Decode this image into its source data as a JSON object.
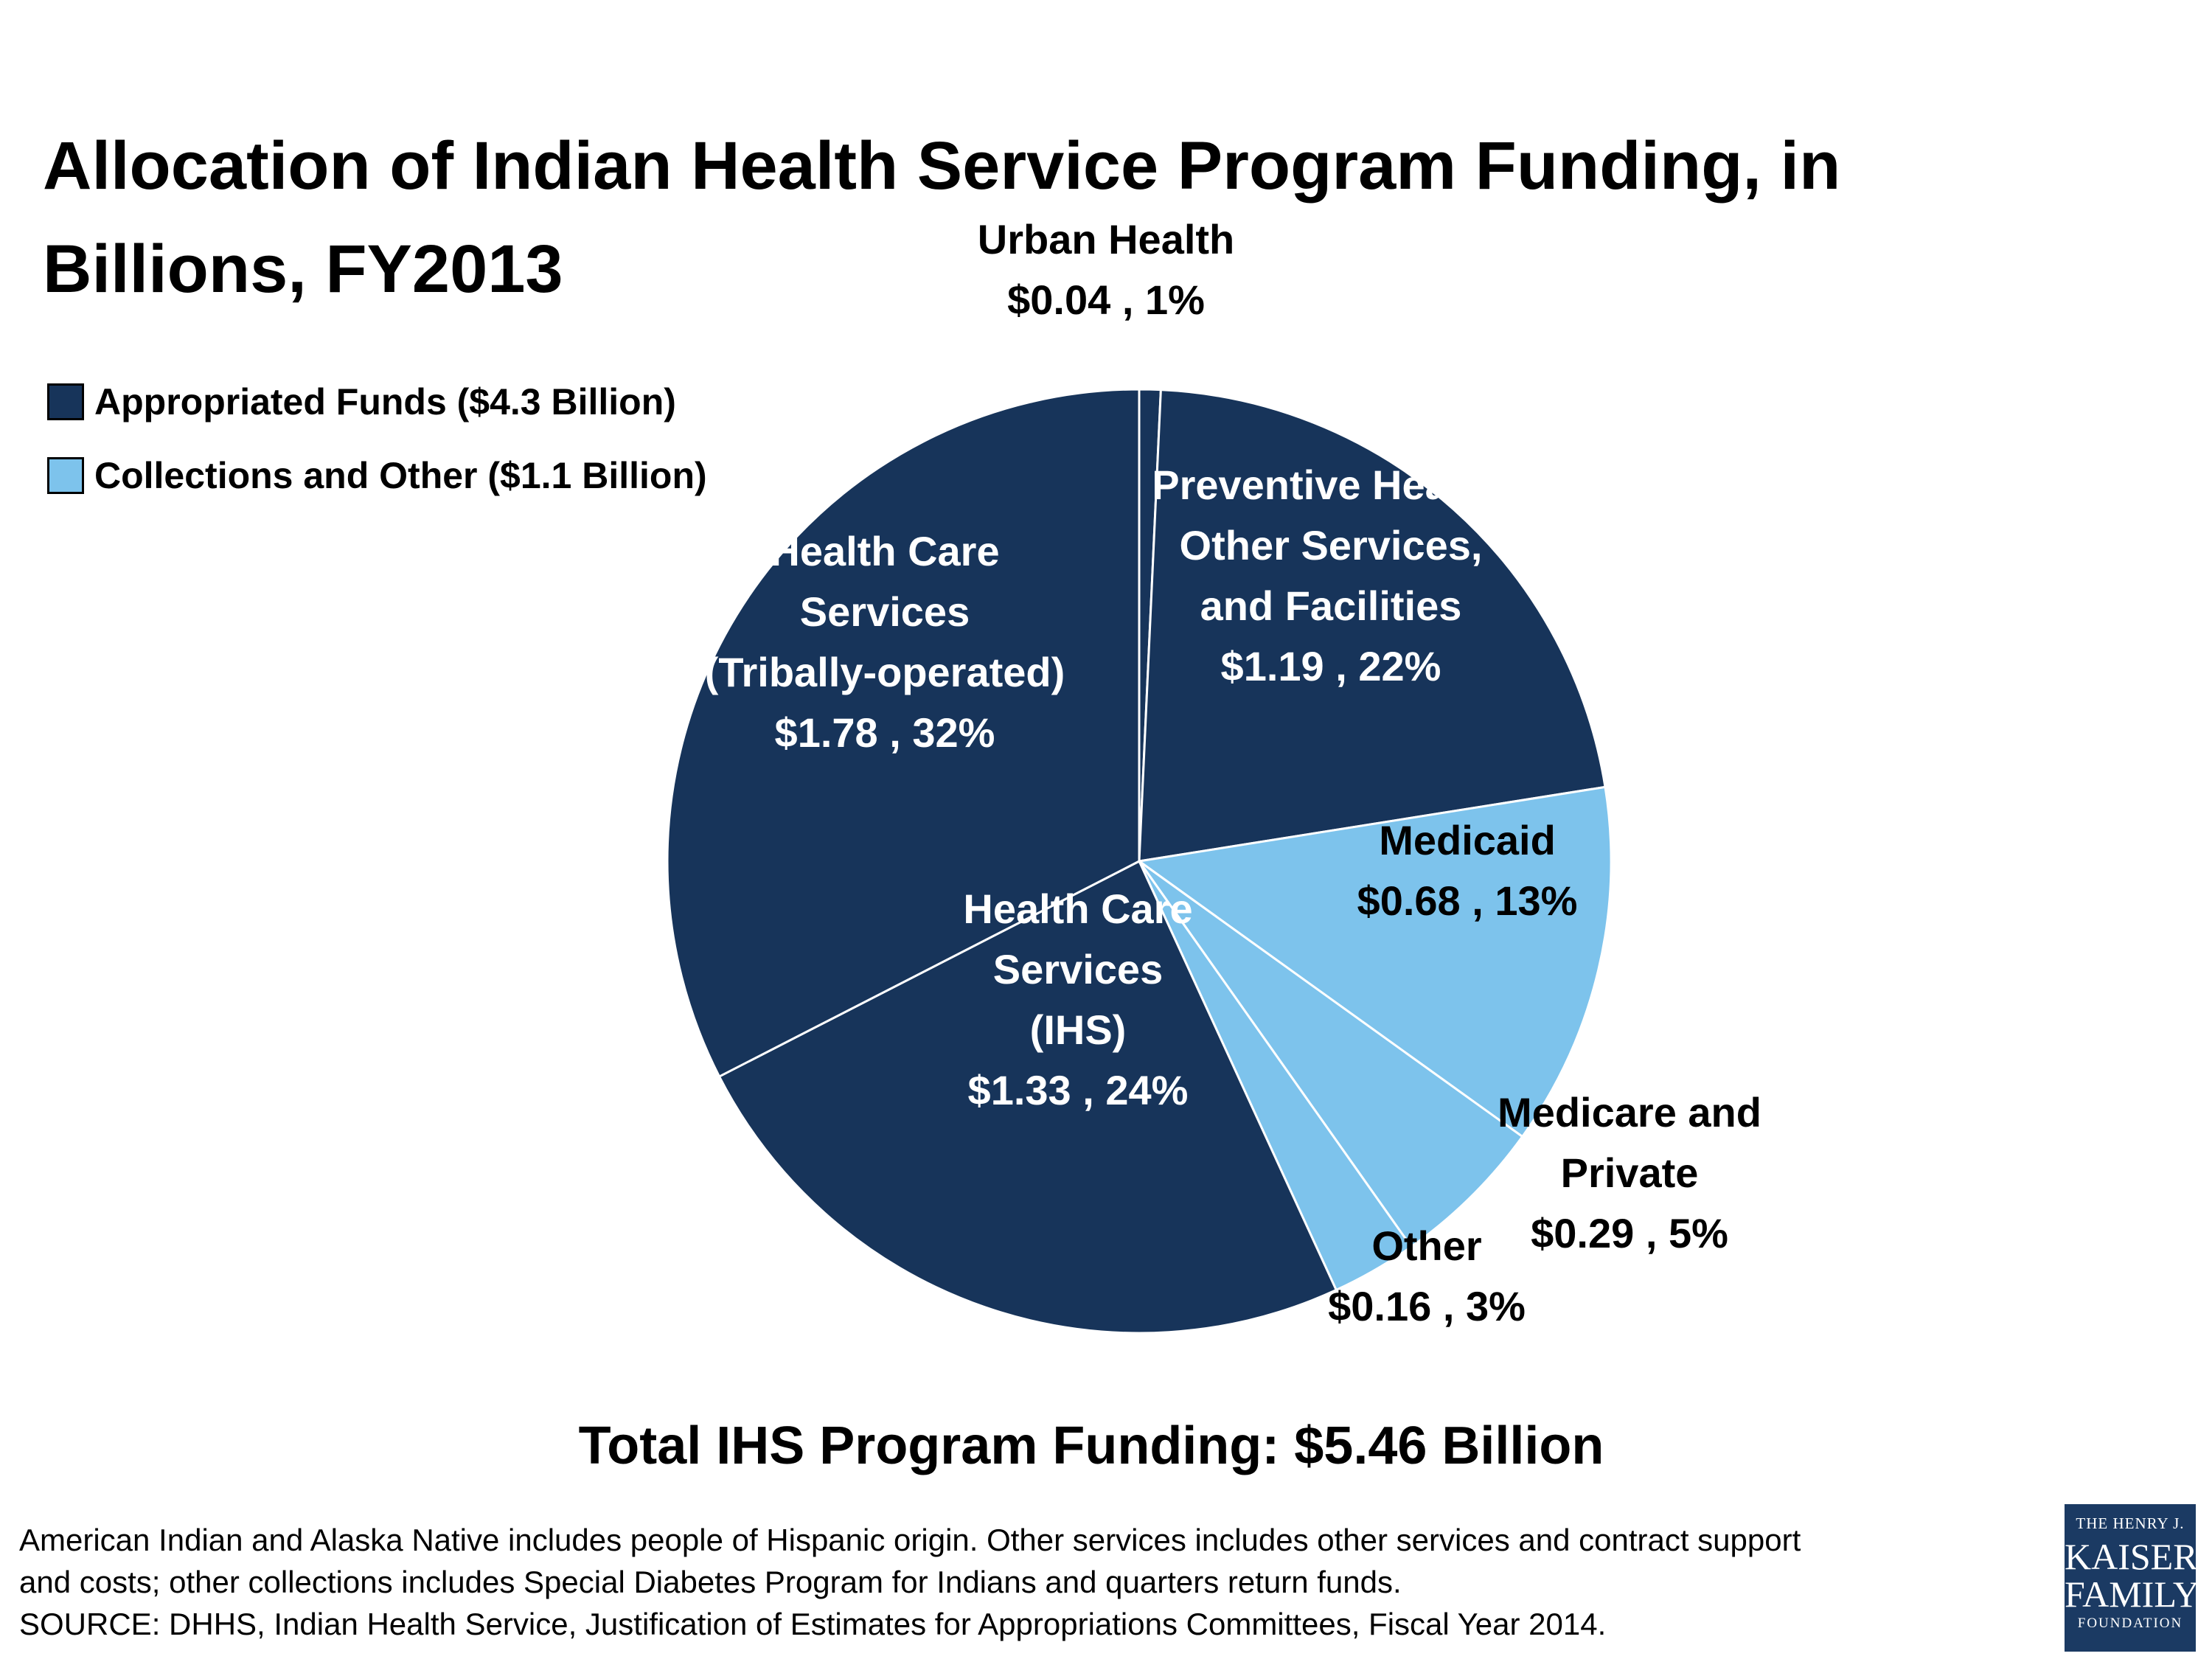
{
  "chart_data": {
    "type": "pie",
    "title": "Allocation of Indian Health Service Program Funding, in Billions, FY2013",
    "legend": [
      {
        "key": "appropriated",
        "label": "Appropriated Funds ($4.3 Billion)",
        "color": "#17345a"
      },
      {
        "key": "collections",
        "label": "Collections and Other ($1.1 Billion)",
        "color": "#7dc3ec"
      }
    ],
    "slices": [
      {
        "name": "Urban Health",
        "value": 0.04,
        "percent": 1,
        "group": "appropriated",
        "label_lines": [
          "Urban Health",
          "$0.04 , 1%"
        ]
      },
      {
        "name": "Preventive Health, Other Services, and Facilities",
        "value": 1.19,
        "percent": 22,
        "group": "appropriated",
        "label_lines": [
          "Preventive Health,",
          "Other Services,",
          "and Facilities",
          "$1.19 , 22%"
        ]
      },
      {
        "name": "Medicaid",
        "value": 0.68,
        "percent": 13,
        "group": "collections",
        "label_lines": [
          "Medicaid",
          "$0.68 , 13%"
        ]
      },
      {
        "name": "Medicare and Private",
        "value": 0.29,
        "percent": 5,
        "group": "collections",
        "label_lines": [
          "Medicare and",
          "Private",
          "$0.29 , 5%"
        ]
      },
      {
        "name": "Other",
        "value": 0.16,
        "percent": 3,
        "group": "collections",
        "label_lines": [
          "Other",
          "$0.16 , 3%"
        ]
      },
      {
        "name": "Health Care Services (IHS)",
        "value": 1.33,
        "percent": 24,
        "group": "appropriated",
        "label_lines": [
          "Health Care",
          "Services",
          "(IHS)",
          "$1.33 , 24%"
        ]
      },
      {
        "name": "Health Care Services (Tribally-operated)",
        "value": 1.78,
        "percent": 32,
        "group": "appropriated",
        "label_lines": [
          "Health Care",
          "Services",
          "(Tribally-operated)",
          "$1.78 , 32%"
        ]
      }
    ],
    "total_label": "Total IHS Program Funding: $5.46 Billion"
  },
  "footnote": {
    "line1": "American Indian and Alaska Native includes people of Hispanic origin. Other services includes other services and contract support",
    "line2": "and costs; other collections includes Special Diabetes Program for Indians and quarters return funds.",
    "line3": "SOURCE: DHHS, Indian Health Service, Justification of Estimates for Appropriations Committees, Fiscal Year 2014."
  },
  "logo": {
    "line1": "THE HENRY J.",
    "line2": "KAISER",
    "line3": "FAMILY",
    "line4": "FOUNDATION"
  }
}
